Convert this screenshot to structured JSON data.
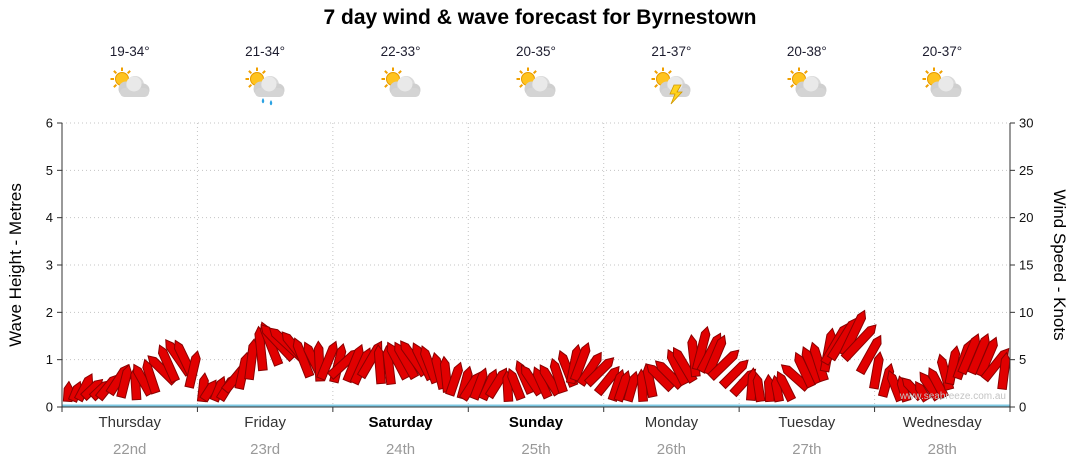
{
  "title": "7 day wind & wave forecast for Byrnestown",
  "watermark": "www.seabreeze.com.au",
  "colors": {
    "arrow_fill": "#e10000",
    "arrow_stroke": "#8b0000",
    "water_line": "#7ec8e3",
    "grid": "#c4c4c4",
    "axis": "#333333"
  },
  "days": [
    {
      "name": "Thursday",
      "date": "22nd",
      "temp": "19-34°",
      "icon": "sun-cloud",
      "bold": false
    },
    {
      "name": "Friday",
      "date": "23rd",
      "temp": "21-34°",
      "icon": "sun-cloud-rain",
      "bold": false
    },
    {
      "name": "Saturday",
      "date": "24th",
      "temp": "22-33°",
      "icon": "sun-cloud",
      "bold": true
    },
    {
      "name": "Sunday",
      "date": "25th",
      "temp": "20-35°",
      "icon": "sun-cloud",
      "bold": true
    },
    {
      "name": "Monday",
      "date": "26th",
      "temp": "21-37°",
      "icon": "thunderstorm",
      "bold": false
    },
    {
      "name": "Tuesday",
      "date": "27th",
      "temp": "20-38°",
      "icon": "sun-cloud",
      "bold": false
    },
    {
      "name": "Wednesday",
      "date": "28th",
      "temp": "20-37°",
      "icon": "sun-cloud",
      "bold": false
    }
  ],
  "chart_data": {
    "type": "area",
    "title": "7 day wind & wave forecast for Byrnestown",
    "x_categories": [
      "Thursday 22nd",
      "Friday 23rd",
      "Saturday 24th",
      "Sunday 25th",
      "Monday 26th",
      "Tuesday 27th",
      "Wednesday 28th"
    ],
    "left_axis": {
      "label": "Wave Height - Metres",
      "min": 0,
      "max": 6,
      "ticks": [
        0,
        1,
        2,
        3,
        4,
        5,
        6
      ]
    },
    "right_axis": {
      "label": "Wind Speed - Knots",
      "min": 0,
      "max": 30,
      "ticks": [
        0,
        5,
        10,
        15,
        20,
        25,
        30
      ]
    },
    "legend": "none",
    "grid": "dotted",
    "points_per_day": 8,
    "wave_heights_m": [
      0.5,
      0.7,
      0.6,
      0.9,
      0.8,
      1.0,
      1.4,
      1.5,
      0.7,
      0.6,
      1.0,
      1.5,
      1.9,
      1.8,
      1.5,
      1.4,
      1.4,
      1.3,
      1.4,
      1.3,
      1.5,
      1.4,
      1.1,
      0.9,
      0.8,
      0.9,
      0.8,
      1.0,
      0.9,
      1.1,
      1.4,
      1.2,
      0.8,
      0.7,
      0.9,
      1.0,
      1.3,
      1.7,
      1.6,
      1.1,
      0.8,
      0.6,
      0.8,
      1.1,
      1.4,
      1.8,
      2.1,
      1.6,
      0.9,
      0.7,
      0.6,
      0.9,
      1.3,
      1.6,
      1.5,
      1.2
    ]
  }
}
